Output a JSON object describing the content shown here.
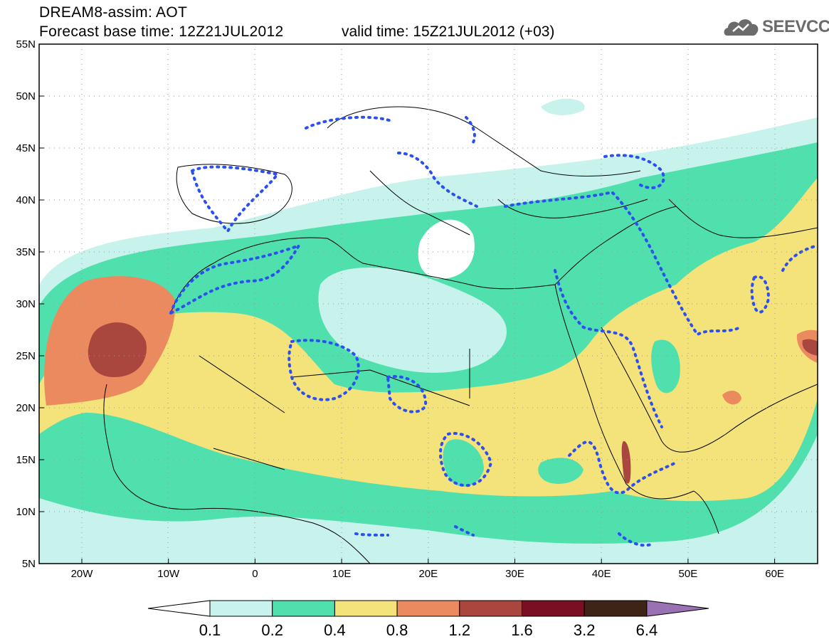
{
  "header": {
    "title_line1": "DREAM8-assim: AOT",
    "title_line2": "Forecast base time: 12Z21JUL2012",
    "valid_time": "valid time: 15Z21JUL2012 (+03)",
    "logo_text": "SEEVCCC",
    "logo_icon": "cloud-logo-icon"
  },
  "axes": {
    "lat_labels": [
      "55N",
      "50N",
      "45N",
      "40N",
      "35N",
      "30N",
      "25N",
      "20N",
      "15N",
      "10N",
      "5N"
    ],
    "lon_labels": [
      "20W",
      "10W",
      "0",
      "10E",
      "20E",
      "30E",
      "40E",
      "50E",
      "60E"
    ]
  },
  "colorbar": {
    "labels": [
      "0.1",
      "0.2",
      "0.4",
      "0.8",
      "1.2",
      "1.6",
      "3.2",
      "6.4"
    ],
    "colors": [
      "#c8f3ec",
      "#4fe0ad",
      "#f4e27a",
      "#ec8a5f",
      "#a9473f",
      "#7a0e22",
      "#3e2416",
      "#9a72b3"
    ],
    "low_color": "#ffffff"
  },
  "colors": {
    "contour": "#2b4ff0",
    "land_border": "#000000"
  }
}
